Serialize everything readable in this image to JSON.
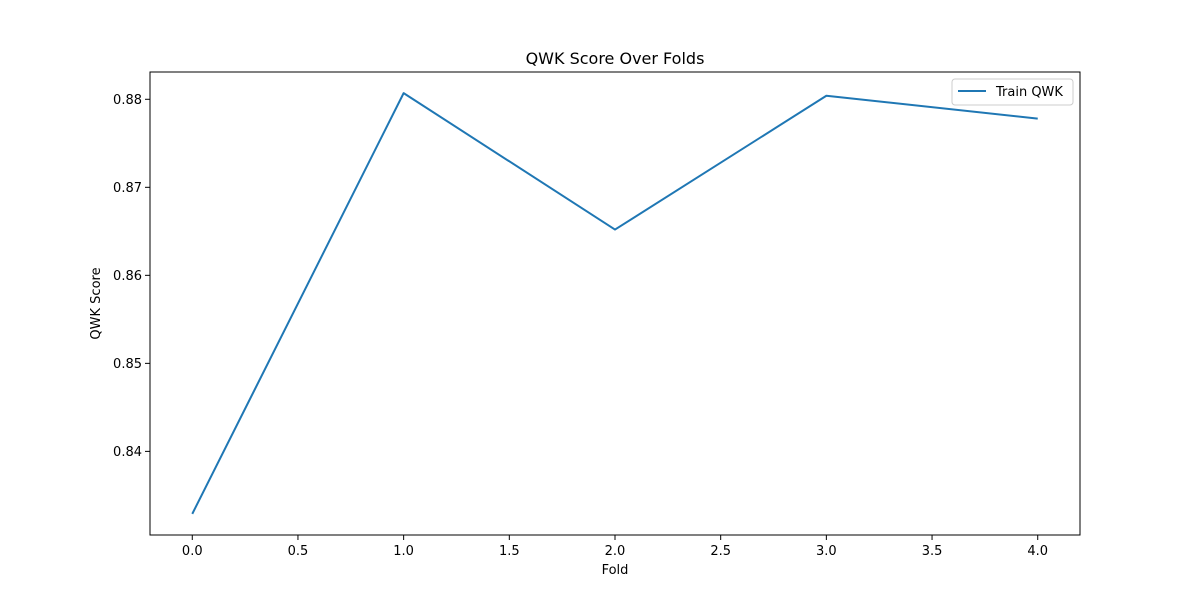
{
  "chart_data": {
    "type": "line",
    "title": "QWK Score Over Folds",
    "xlabel": "Fold",
    "ylabel": "QWK Score",
    "xlim": [
      -0.2,
      4.2
    ],
    "ylim": [
      0.8305,
      0.8831
    ],
    "xticks": [
      0.0,
      0.5,
      1.0,
      1.5,
      2.0,
      2.5,
      3.0,
      3.5,
      4.0
    ],
    "xtick_labels": [
      "0.0",
      "0.5",
      "1.0",
      "1.5",
      "2.0",
      "2.5",
      "3.0",
      "3.5",
      "4.0"
    ],
    "yticks": [
      0.84,
      0.85,
      0.86,
      0.87,
      0.88
    ],
    "ytick_labels": [
      "0.84",
      "0.85",
      "0.86",
      "0.87",
      "0.88"
    ],
    "grid": false,
    "legend_position": "top-right",
    "series": [
      {
        "name": "Train QWK",
        "color": "#1f77b4",
        "x": [
          0,
          1,
          2,
          3,
          4
        ],
        "y": [
          0.8329,
          0.8807,
          0.8652,
          0.8804,
          0.8778
        ]
      }
    ]
  }
}
